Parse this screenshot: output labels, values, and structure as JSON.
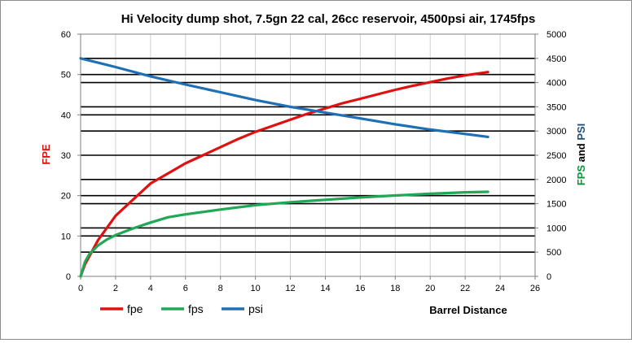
{
  "chart_data": {
    "type": "line",
    "title": "Hi Velocity dump shot, 7.5gn 22 cal, 26cc reservoir, 4500psi air, 1745fps",
    "xlabel": "Barrel Distance",
    "ylabel_left": "FPE",
    "ylabel_right": {
      "parts": [
        {
          "text": "FPS",
          "color": "#009933"
        },
        {
          "text": " and ",
          "color": "#000000"
        },
        {
          "text": "PSI",
          "color": "#1f4e79"
        }
      ]
    },
    "xlim": [
      0,
      26
    ],
    "xticks": [
      0,
      2,
      4,
      6,
      8,
      10,
      12,
      14,
      16,
      18,
      20,
      22,
      24,
      26
    ],
    "ylim_left": [
      0,
      60
    ],
    "yticks_left": [
      0,
      10,
      20,
      30,
      40,
      50,
      60
    ],
    "ylim_right": [
      0,
      5000
    ],
    "yticks_right": [
      0,
      500,
      1000,
      1500,
      2000,
      2500,
      3000,
      3500,
      4000,
      4500,
      5000
    ],
    "grid": true,
    "legend_position": "bottom-left",
    "series": [
      {
        "name": "fpe",
        "axis": "left",
        "color": "#e01010",
        "x": [
          0,
          0.25,
          0.5,
          1,
          1.5,
          2,
          3,
          4,
          5,
          6,
          7,
          8,
          9,
          10,
          11,
          12,
          13,
          14,
          15,
          16,
          17,
          18,
          19,
          20,
          21,
          22,
          23.3
        ],
        "y": [
          0,
          3,
          5,
          9,
          12,
          15,
          19,
          23,
          25.5,
          28,
          30,
          32,
          34,
          35.8,
          37.3,
          38.8,
          40.3,
          41.6,
          42.9,
          44,
          45.1,
          46.2,
          47.2,
          48.1,
          49,
          49.8,
          50.6
        ]
      },
      {
        "name": "fps",
        "axis": "right",
        "color": "#1fa855",
        "x": [
          0,
          0.25,
          0.5,
          1,
          1.5,
          2,
          3,
          4,
          5,
          6,
          8,
          10,
          12,
          14,
          16,
          18,
          20,
          22,
          23.3
        ],
        "y": [
          0,
          300,
          460,
          640,
          760,
          850,
          990,
          1110,
          1220,
          1280,
          1380,
          1470,
          1530,
          1580,
          1630,
          1670,
          1705,
          1735,
          1745
        ]
      },
      {
        "name": "psi",
        "axis": "right",
        "color": "#1f6fb5",
        "x": [
          0,
          2,
          4,
          6,
          8,
          10,
          12,
          14,
          16,
          18,
          20,
          22,
          23.3
        ],
        "y": [
          4500,
          4320,
          4130,
          3960,
          3800,
          3640,
          3500,
          3380,
          3260,
          3140,
          3030,
          2940,
          2880
        ]
      }
    ]
  }
}
